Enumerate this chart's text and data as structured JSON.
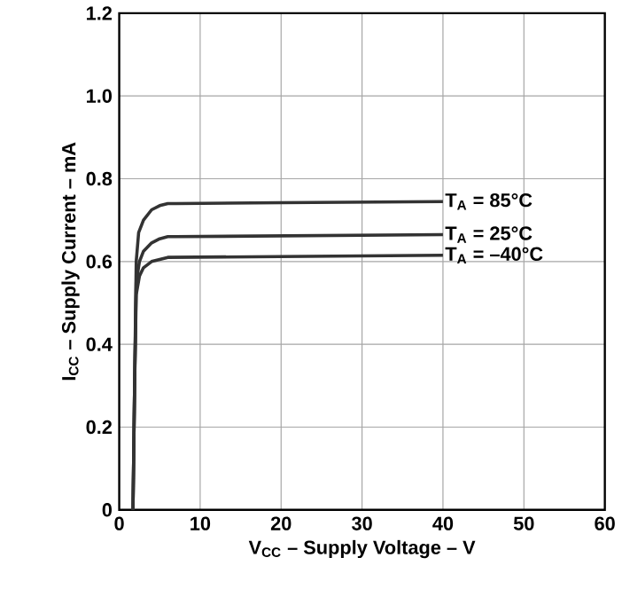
{
  "chart_data": {
    "type": "line",
    "xlabel": "V$_{CC}$ – Supply Voltage – V",
    "ylabel": "I$_{CC}$ – Supply Current – mA",
    "xlim": [
      0,
      60
    ],
    "ylim": [
      0,
      1.2
    ],
    "xticks": [
      0,
      10,
      20,
      30,
      40,
      50,
      60
    ],
    "yticks": [
      0,
      {
        "value": 0.2,
        "label": "0.2"
      },
      {
        "value": 0.4,
        "label": "0.4"
      },
      {
        "value": 0.6,
        "label": "0.6"
      },
      {
        "value": 0.8,
        "label": "0.8"
      },
      {
        "value": 1.0,
        "label": "1.0"
      },
      {
        "value": 1.2,
        "label": "1.2"
      }
    ],
    "grid": true,
    "legend": false,
    "marker": "none",
    "line_style": "solid",
    "series": [
      {
        "name": "T$_{A}$ = 85°C",
        "color": "#333333",
        "x": [
          1.7,
          1.9,
          2.1,
          2.4,
          3,
          4,
          5,
          6,
          7,
          20,
          40
        ],
        "values": [
          0,
          0.3,
          0.6,
          0.67,
          0.7,
          0.725,
          0.735,
          0.74,
          0.74,
          0.742,
          0.745
        ]
      },
      {
        "name": "T$_{A}$ = 25°C",
        "color": "#333333",
        "x": [
          1.7,
          1.9,
          2.1,
          2.5,
          3,
          4,
          5,
          6,
          7,
          40
        ],
        "values": [
          0,
          0.3,
          0.55,
          0.6,
          0.625,
          0.645,
          0.655,
          0.66,
          0.66,
          0.665
        ]
      },
      {
        "name": "T$_{A}$ = –40°C",
        "color": "#333333",
        "x": [
          1.7,
          1.9,
          2.1,
          2.5,
          3,
          4,
          5,
          6,
          40
        ],
        "values": [
          0,
          0.3,
          0.52,
          0.565,
          0.585,
          0.6,
          0.605,
          0.61,
          0.615
        ]
      }
    ]
  }
}
